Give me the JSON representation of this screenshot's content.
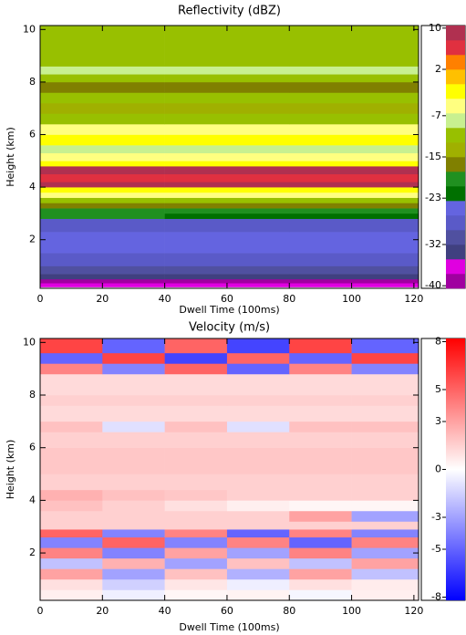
{
  "chart_data": [
    {
      "type": "heatmap",
      "title": "Reflectivity  (dBZ)",
      "xlabel": "Dwell Time (100ms)",
      "ylabel": "Height (km)",
      "xlim": [
        0,
        121.5
      ],
      "ylim": [
        0.15,
        10.15
      ],
      "xticks": [
        0,
        20,
        40,
        60,
        80,
        100,
        120
      ],
      "yticks": [
        2,
        4,
        6,
        8,
        10
      ],
      "xbins": [
        0,
        40,
        80,
        121.5
      ],
      "ybins": [
        0.2,
        0.35,
        0.5,
        0.7,
        1.0,
        1.5,
        2.3,
        2.8,
        3.0,
        3.2,
        3.4,
        3.6,
        3.8,
        4.0,
        4.2,
        4.5,
        4.8,
        5.0,
        5.3,
        5.6,
        6.0,
        6.4,
        6.8,
        7.2,
        7.6,
        8.0,
        8.3,
        8.6,
        10.15
      ],
      "values": [
        [
          -36,
          -36,
          -36
        ],
        [
          -39,
          -39,
          -39
        ],
        [
          -34,
          -34,
          -34
        ],
        [
          -31,
          -31,
          -31
        ],
        [
          -28,
          -28,
          -28
        ],
        [
          -25,
          -25,
          -25
        ],
        [
          -28,
          -28,
          -28
        ],
        [
          -19,
          -22,
          -22
        ],
        [
          -19,
          -19,
          -19
        ],
        [
          -16,
          -16,
          -16
        ],
        [
          -11,
          -11,
          -11
        ],
        [
          -5,
          -5,
          -5
        ],
        [
          -2,
          -2,
          -2
        ],
        [
          8,
          8,
          8
        ],
        [
          6,
          6,
          6
        ],
        [
          9,
          9,
          9
        ],
        [
          -2,
          -2,
          -2
        ],
        [
          -5,
          -5,
          -5
        ],
        [
          -8,
          -8,
          -8
        ],
        [
          -2,
          -2,
          -2
        ],
        [
          -5,
          -5,
          -5
        ],
        [
          -11,
          -11,
          -11
        ],
        [
          -14,
          -14,
          -14
        ],
        [
          -11,
          -11,
          -11
        ],
        [
          -16,
          -16,
          -16
        ],
        [
          -11,
          -11,
          -11
        ],
        [
          -8,
          -8,
          -8
        ],
        [
          -12,
          -12,
          -12
        ]
      ],
      "colorbar": {
        "clim": [
          -40.5,
          10.5
        ],
        "ticks": [
          10,
          2,
          -7,
          -15,
          -23,
          -32,
          -40
        ],
        "discrete": true,
        "colors": [
          "#a000a0",
          "#e000e0",
          "#404080",
          "#5050a0",
          "#5a5ac8",
          "#6464e0",
          "#007000",
          "#209020",
          "#808000",
          "#a0b000",
          "#98c000",
          "#c8f090",
          "#ffff80",
          "#ffff00",
          "#ffc000",
          "#ff8000",
          "#e03040",
          "#b03050"
        ]
      }
    },
    {
      "type": "heatmap",
      "title": "Velocity (m/s)",
      "xlabel": "Dwell Time (100ms)",
      "ylabel": "Height (km)",
      "xlim": [
        0,
        121.5
      ],
      "ylim": [
        0.2,
        10.15
      ],
      "xticks": [
        0,
        20,
        40,
        60,
        80,
        100,
        120
      ],
      "yticks": [
        2,
        4,
        6,
        8,
        10
      ],
      "xbins": [
        0,
        20,
        40,
        60,
        80,
        100,
        121.5
      ],
      "ybins": [
        0.2,
        0.6,
        1.0,
        1.4,
        1.8,
        2.2,
        2.6,
        2.9,
        3.2,
        3.6,
        4.0,
        4.4,
        5.0,
        6.0,
        6.6,
        7.0,
        7.6,
        8.0,
        8.8,
        9.2,
        9.6,
        10.15
      ],
      "values": [
        [
          0.5,
          -0.5,
          0.3,
          0.4,
          -0.3,
          0.5
        ],
        [
          1,
          -1.5,
          0.8,
          -0.5,
          1,
          0.6
        ],
        [
          3,
          -3,
          2,
          -2.5,
          3,
          -2
        ],
        [
          -2,
          2.5,
          -3,
          2,
          -2,
          3
        ],
        [
          4,
          -4,
          3,
          -3,
          4,
          -3
        ],
        [
          -4,
          5,
          -4,
          4,
          -5,
          4
        ],
        [
          5,
          -4,
          4,
          -5,
          4,
          -4
        ],
        [
          1.5,
          1.5,
          1.5,
          1.5,
          1.5,
          1.5
        ],
        [
          1.5,
          1.5,
          1.5,
          1.5,
          3,
          -3
        ],
        [
          2,
          1.5,
          1,
          0.5,
          0.3,
          0.3
        ],
        [
          2.5,
          2,
          1.8,
          1.5,
          1.5,
          1.5
        ],
        [
          1.5,
          1.5,
          1.5,
          1.5,
          1.5,
          1.5
        ],
        [
          1.8,
          1.8,
          1.8,
          1.8,
          1.8,
          1.8
        ],
        [
          1.5,
          1.5,
          1.5,
          1.5,
          1.5,
          1.5
        ],
        [
          2,
          -1,
          2,
          -1,
          2,
          2
        ],
        [
          1.2,
          1.2,
          1.2,
          1.2,
          1.2,
          1.2
        ],
        [
          1.5,
          1.5,
          1.5,
          1.5,
          1.5,
          1.5
        ],
        [
          1.2,
          1.2,
          1.2,
          1.2,
          1.2,
          1.2
        ],
        [
          4,
          -4,
          5,
          -5,
          4,
          -4
        ],
        [
          -5,
          6,
          -6,
          5,
          -5,
          6
        ],
        [
          6,
          -5,
          5,
          -6,
          6,
          -5
        ]
      ],
      "colorbar": {
        "clim": [
          -8.2,
          8.2
        ],
        "ticks": [
          8,
          5,
          3,
          0,
          -3,
          -5,
          -8
        ],
        "discrete": false,
        "colors": [
          "#0000ff",
          "#ffffff",
          "#ff0000"
        ]
      }
    }
  ]
}
